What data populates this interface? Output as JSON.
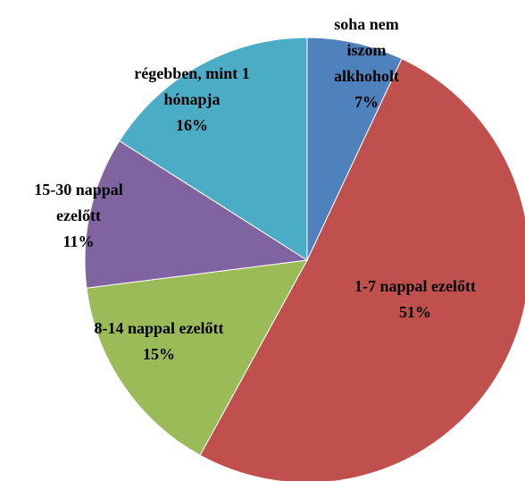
{
  "chart_data": {
    "type": "pie",
    "categories": [
      "soha nem iszom alkhoholt",
      "1-7 nappal ezelőtt",
      "8-14 nappal ezelőtt",
      "15-30 nappal ezelőtt",
      "régebben, mint 1 hónapja"
    ],
    "values": [
      7,
      51,
      15,
      11,
      16
    ],
    "value_labels": [
      "7%",
      "51%",
      "15%",
      "11%",
      "16%"
    ],
    "colors": [
      "#4f81bd",
      "#c0504d",
      "#9bbb59",
      "#8064a2",
      "#4bacc6"
    ]
  }
}
